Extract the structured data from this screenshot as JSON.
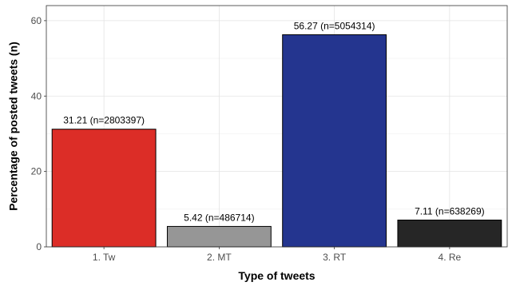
{
  "chart_data": {
    "type": "bar",
    "categories": [
      "1. Tw",
      "2. MT",
      "3. RT",
      "4. Re"
    ],
    "values": [
      31.21,
      5.42,
      56.27,
      7.11
    ],
    "data_labels": [
      "31.21 (n=2803397)",
      "5.42 (n=486714)",
      "56.27 (n=5054314)",
      "7.11 (n=638269)"
    ],
    "colors": [
      "#dc2d27",
      "#969696",
      "#24358f",
      "#262626"
    ],
    "xlabel": "Type of tweets",
    "ylabel": "Percentage of posted tweets (n)",
    "ylim": [
      0,
      64
    ],
    "yticks": [
      0,
      20,
      40,
      60
    ],
    "grid": true,
    "legend": "none"
  }
}
